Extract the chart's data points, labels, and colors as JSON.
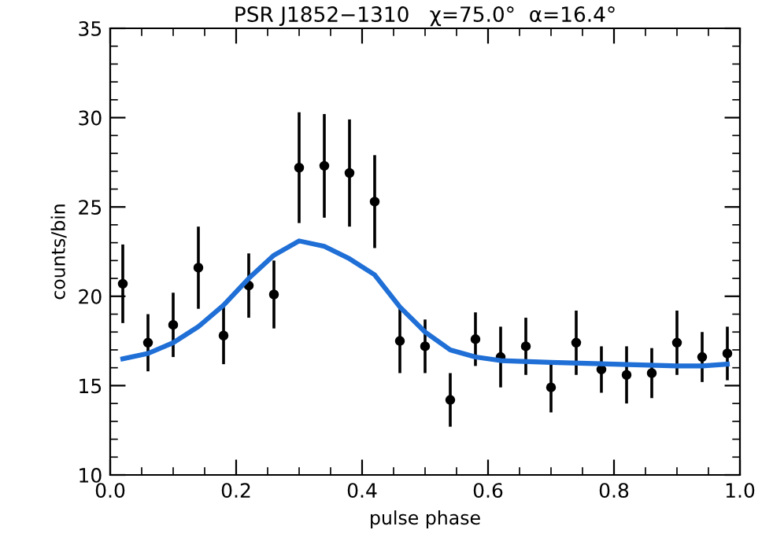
{
  "chart_data": {
    "type": "scatter",
    "title": "PSR J1852−1310   χ=75.0°  α=16.4°",
    "xlabel": "pulse phase",
    "ylabel": "counts/bin",
    "xlim": [
      0,
      1
    ],
    "xticks": [
      {
        "value": 0,
        "label": "0.0"
      },
      0.2,
      0.4,
      0.6,
      0.8,
      {
        "value": 1,
        "label": "1.0"
      }
    ],
    "ylim": [
      10,
      35
    ],
    "yticks": [
      10,
      15,
      20,
      25,
      30,
      35
    ],
    "grid": false,
    "legend": false,
    "series": [
      {
        "color": "#000000",
        "marker": "circle",
        "x": [
          0.02,
          0.06,
          0.1,
          0.14,
          0.18,
          0.22,
          0.26,
          0.3,
          0.34,
          0.38,
          0.42,
          0.46,
          0.5,
          0.54,
          0.58,
          0.62,
          0.66,
          0.7,
          0.74,
          0.78,
          0.82,
          0.86,
          0.9,
          0.94,
          0.98
        ],
        "values": [
          20.7,
          17.4,
          18.4,
          21.6,
          17.8,
          20.6,
          20.1,
          27.2,
          27.3,
          26.9,
          25.3,
          17.5,
          17.2,
          14.2,
          17.6,
          16.6,
          17.2,
          14.9,
          17.4,
          15.9,
          15.6,
          15.7,
          17.4,
          16.6,
          16.8
        ],
        "errors": [
          2.2,
          1.6,
          1.8,
          2.3,
          1.6,
          1.8,
          1.9,
          3.1,
          2.9,
          3.0,
          2.6,
          1.8,
          1.5,
          1.5,
          1.5,
          1.7,
          1.6,
          1.4,
          1.8,
          1.3,
          1.6,
          1.4,
          1.8,
          1.4,
          1.5
        ]
      },
      {
        "type": "line",
        "color": "#1f6fd6",
        "line_style": "solid",
        "marker": "none",
        "x": [
          0.02,
          0.06,
          0.1,
          0.14,
          0.18,
          0.22,
          0.26,
          0.3,
          0.34,
          0.38,
          0.42,
          0.46,
          0.5,
          0.54,
          0.58,
          0.62,
          0.7,
          0.8,
          0.9,
          0.94,
          0.98
        ],
        "values": [
          16.5,
          16.8,
          17.4,
          18.3,
          19.5,
          21.0,
          22.3,
          23.1,
          22.8,
          22.1,
          21.2,
          19.4,
          18.0,
          17.0,
          16.6,
          16.4,
          16.3,
          16.2,
          16.1,
          16.1,
          16.2
        ]
      }
    ]
  }
}
